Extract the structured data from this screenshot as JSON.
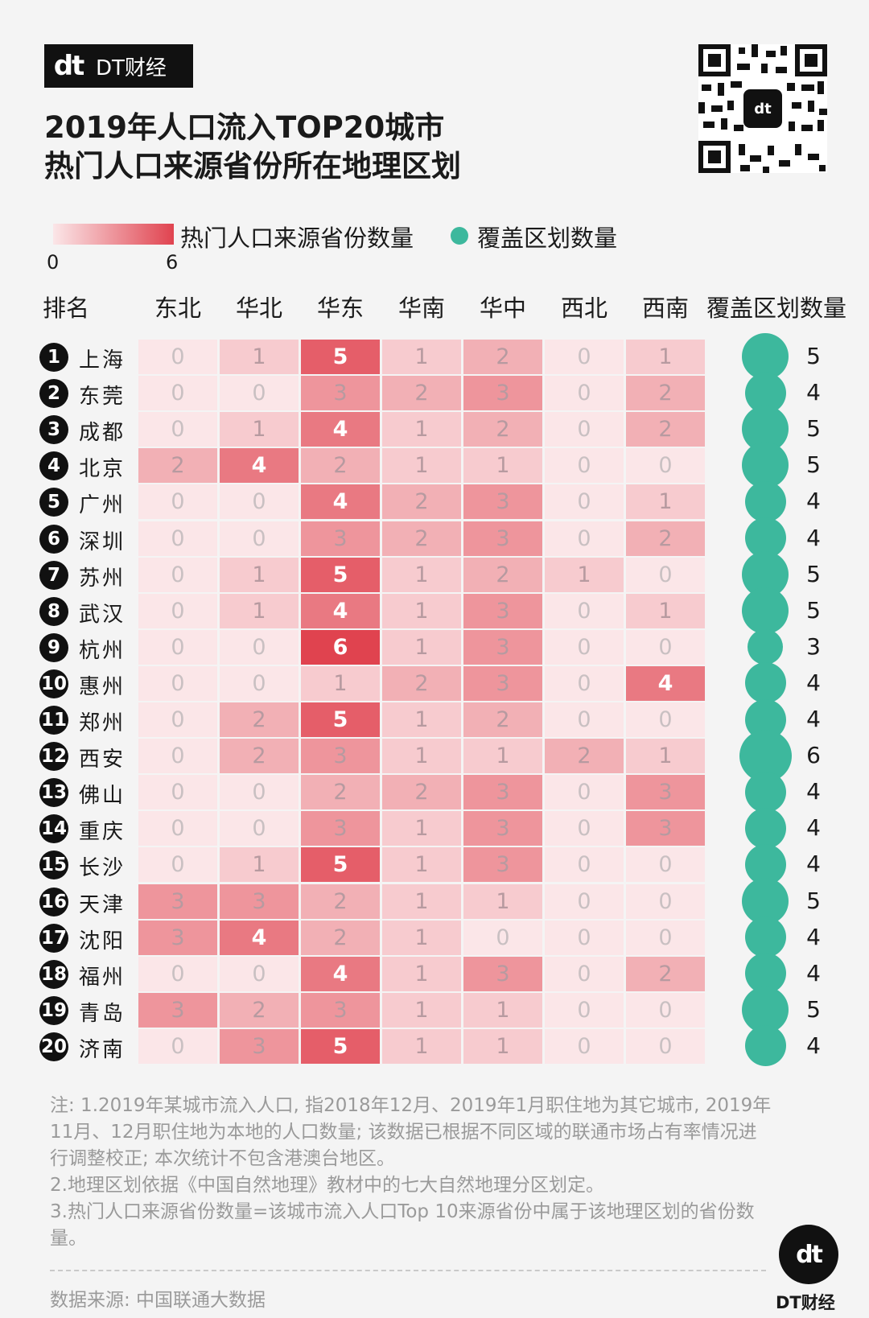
{
  "brand": {
    "logo": "dt",
    "name": "DT财经"
  },
  "title": {
    "line1": "2019年人口流入TOP20城市",
    "line2": "热门人口来源省份所在地理区划"
  },
  "legend": {
    "gradient_label": "热门人口来源省份数量",
    "min": "0",
    "max": "6",
    "dot_label": "覆盖区划数量",
    "dot_color": "#3db89d"
  },
  "headers": {
    "rank": "排名",
    "cover": "覆盖区划数量"
  },
  "footer_logo": {
    "logo": "dt",
    "name": "DT财经"
  },
  "notes": [
    "注: 1.2019年某城市流入人口, 指2018年12月、2019年1月职住地为其它城市, 2019年11月、12月职住地为本地的人口数量; 该数据已根据不同区域的联通市场占有率情况进行调整校正; 本次统计不包含港澳台地区。",
    "2.地理区划依据《中国自然地理》教材中的七大自然地理分区划定。",
    "3.热门人口来源省份数量=该城市流入人口Top 10来源省份中属于该地理区划的省份数量。"
  ],
  "source": "数据来源: 中国联通大数据",
  "chart_data": {
    "type": "heatmap",
    "title": "2019年人口流入TOP20城市 热门人口来源省份所在地理区划",
    "columns": [
      "东北",
      "华北",
      "华东",
      "华南",
      "华中",
      "西北",
      "西南"
    ],
    "color_scale": {
      "min": 0,
      "max": 6,
      "low": "#fbe6e8",
      "high": "#e0434f"
    },
    "rows": [
      {
        "rank": "1",
        "city": "上海",
        "values": [
          0,
          1,
          5,
          1,
          2,
          0,
          1
        ],
        "coverage": 5
      },
      {
        "rank": "2",
        "city": "东莞",
        "values": [
          0,
          0,
          3,
          2,
          3,
          0,
          2
        ],
        "coverage": 4
      },
      {
        "rank": "3",
        "city": "成都",
        "values": [
          0,
          1,
          4,
          1,
          2,
          0,
          2
        ],
        "coverage": 5
      },
      {
        "rank": "4",
        "city": "北京",
        "values": [
          2,
          4,
          2,
          1,
          1,
          0,
          0
        ],
        "coverage": 5
      },
      {
        "rank": "5",
        "city": "广州",
        "values": [
          0,
          0,
          4,
          2,
          3,
          0,
          1
        ],
        "coverage": 4
      },
      {
        "rank": "6",
        "city": "深圳",
        "values": [
          0,
          0,
          3,
          2,
          3,
          0,
          2
        ],
        "coverage": 4
      },
      {
        "rank": "7",
        "city": "苏州",
        "values": [
          0,
          1,
          5,
          1,
          2,
          1,
          0
        ],
        "coverage": 5
      },
      {
        "rank": "8",
        "city": "武汉",
        "values": [
          0,
          1,
          4,
          1,
          3,
          0,
          1
        ],
        "coverage": 5
      },
      {
        "rank": "9",
        "city": "杭州",
        "values": [
          0,
          0,
          6,
          1,
          3,
          0,
          0
        ],
        "coverage": 3
      },
      {
        "rank": "10",
        "city": "惠州",
        "values": [
          0,
          0,
          1,
          2,
          3,
          0,
          4
        ],
        "coverage": 4
      },
      {
        "rank": "11",
        "city": "郑州",
        "values": [
          0,
          2,
          5,
          1,
          2,
          0,
          0
        ],
        "coverage": 4
      },
      {
        "rank": "12",
        "city": "西安",
        "values": [
          0,
          2,
          3,
          1,
          1,
          2,
          1
        ],
        "coverage": 6
      },
      {
        "rank": "13",
        "city": "佛山",
        "values": [
          0,
          0,
          2,
          2,
          3,
          0,
          3
        ],
        "coverage": 4
      },
      {
        "rank": "14",
        "city": "重庆",
        "values": [
          0,
          0,
          3,
          1,
          3,
          0,
          3
        ],
        "coverage": 4
      },
      {
        "rank": "15",
        "city": "长沙",
        "values": [
          0,
          1,
          5,
          1,
          3,
          0,
          0
        ],
        "coverage": 4
      },
      {
        "rank": "16",
        "city": "天津",
        "values": [
          3,
          3,
          2,
          1,
          1,
          0,
          0
        ],
        "coverage": 5
      },
      {
        "rank": "17",
        "city": "沈阳",
        "values": [
          3,
          4,
          2,
          1,
          0,
          0,
          0
        ],
        "coverage": 4
      },
      {
        "rank": "18",
        "city": "福州",
        "values": [
          0,
          0,
          4,
          1,
          3,
          0,
          2
        ],
        "coverage": 4
      },
      {
        "rank": "19",
        "city": "青岛",
        "values": [
          3,
          2,
          3,
          1,
          1,
          0,
          0
        ],
        "coverage": 5
      },
      {
        "rank": "20",
        "city": "济南",
        "values": [
          0,
          3,
          5,
          1,
          1,
          0,
          0
        ],
        "coverage": 4
      }
    ]
  }
}
